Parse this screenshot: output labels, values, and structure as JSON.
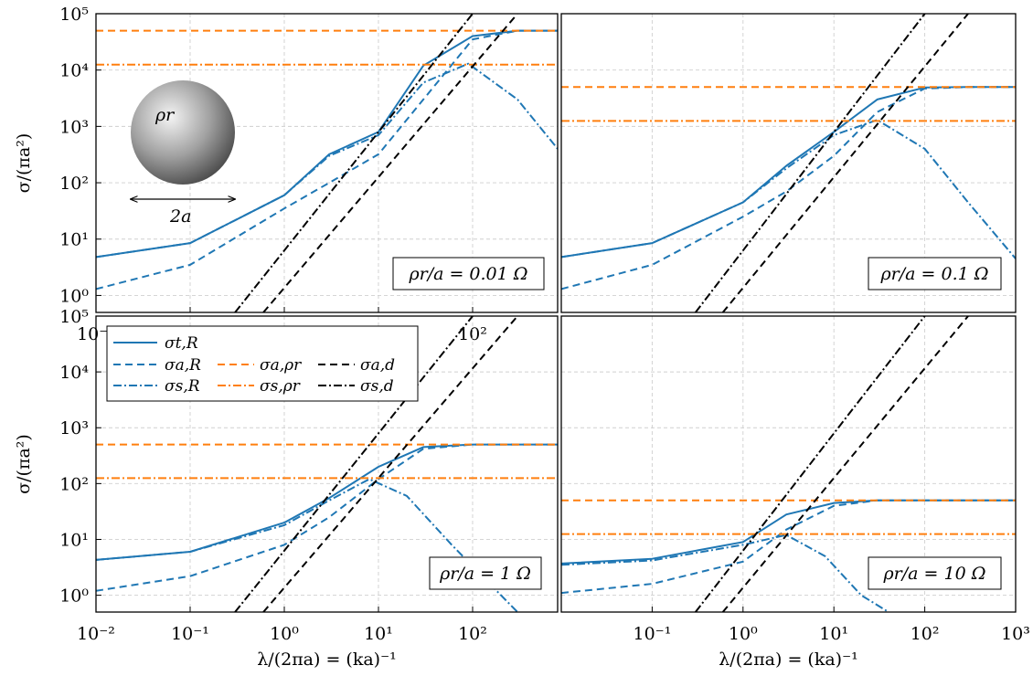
{
  "colors": {
    "blue": "#1f77b4",
    "orange": "#ff7f0e",
    "black": "#000000",
    "grid": "#cfcfcf"
  },
  "chart_data": [
    {
      "type": "line",
      "panel": "top-left",
      "annotation": "ρr/a = 0.01 Ω",
      "ylabel": "σ/(πa²)",
      "xlabel": "",
      "x_scale": "log",
      "y_scale": "log",
      "xlim": [
        0.01,
        800
      ],
      "ylim": [
        0.5,
        100000
      ],
      "xticks": [
        "10⁻²",
        "10⁻¹",
        "10⁰",
        "10¹",
        "10²"
      ],
      "yticks": [
        "10⁰",
        "10¹",
        "10²",
        "10³",
        "10⁴",
        "10⁵"
      ],
      "inset": {
        "sphere_label": "ρr",
        "dimension_label": "2a"
      },
      "series": [
        {
          "name": "σt,R",
          "style": "solid",
          "color": "blue",
          "x": [
            0.01,
            0.1,
            1,
            3,
            10,
            30,
            100,
            300,
            800
          ],
          "y": [
            4.8,
            8.5,
            60,
            320,
            800,
            12000,
            40000,
            50000,
            50000
          ]
        },
        {
          "name": "σa,R",
          "style": "dashed",
          "color": "blue",
          "x": [
            0.01,
            0.1,
            1,
            3,
            10,
            30,
            100,
            300,
            800
          ],
          "y": [
            1.3,
            3.5,
            35,
            100,
            320,
            3000,
            35000,
            50000,
            50000
          ]
        },
        {
          "name": "σs,R",
          "style": "dashdot",
          "color": "blue",
          "x": [
            0.01,
            0.1,
            1,
            3,
            10,
            30,
            90,
            300,
            800
          ],
          "y": [
            4.8,
            8.5,
            60,
            300,
            700,
            6000,
            13000,
            3000,
            400
          ]
        },
        {
          "name": "σa,ρr",
          "style": "dashed",
          "color": "orange",
          "x": [
            0.01,
            800
          ],
          "y": [
            50000,
            50000
          ]
        },
        {
          "name": "σs,ρr",
          "style": "dashdot",
          "color": "orange",
          "x": [
            0.01,
            800
          ],
          "y": [
            12500,
            12500
          ]
        },
        {
          "name": "σa,d",
          "style": "dashed",
          "color": "black",
          "x": [
            0.6,
            300
          ],
          "y": [
            0.5,
            100000
          ]
        },
        {
          "name": "σs,d",
          "style": "dashdot",
          "color": "black",
          "x": [
            0.3,
            100
          ],
          "y": [
            0.5,
            100000
          ]
        }
      ]
    },
    {
      "type": "line",
      "panel": "top-right",
      "annotation": "ρr/a = 0.1 Ω",
      "ylabel": "",
      "xlabel": "",
      "x_scale": "log",
      "y_scale": "log",
      "xlim": [
        0.01,
        1000
      ],
      "ylim": [
        0.5,
        100000
      ],
      "xticks": [],
      "yticks": [],
      "series": [
        {
          "name": "σt,R",
          "style": "solid",
          "color": "blue",
          "x": [
            0.01,
            0.1,
            1,
            3,
            10,
            30,
            100,
            300,
            1000
          ],
          "y": [
            4.8,
            8.5,
            45,
            200,
            800,
            3000,
            4900,
            5000,
            5000
          ]
        },
        {
          "name": "σa,R",
          "style": "dashed",
          "color": "blue",
          "x": [
            0.01,
            0.1,
            1,
            3,
            10,
            30,
            100,
            300,
            1000
          ],
          "y": [
            1.3,
            3.5,
            25,
            70,
            300,
            1800,
            4700,
            5000,
            5000
          ]
        },
        {
          "name": "σs,R",
          "style": "dashdot",
          "color": "blue",
          "x": [
            0.01,
            0.1,
            1,
            3,
            10,
            30,
            100,
            300,
            1000
          ],
          "y": [
            4.8,
            8.5,
            45,
            180,
            700,
            1300,
            400,
            45,
            4.5
          ]
        },
        {
          "name": "σa,ρr",
          "style": "dashed",
          "color": "orange",
          "x": [
            0.01,
            1000
          ],
          "y": [
            5000,
            5000
          ]
        },
        {
          "name": "σs,ρr",
          "style": "dashdot",
          "color": "orange",
          "x": [
            0.01,
            1000
          ],
          "y": [
            1250,
            1250
          ]
        },
        {
          "name": "σa,d",
          "style": "dashed",
          "color": "black",
          "x": [
            0.6,
            300
          ],
          "y": [
            0.5,
            100000
          ]
        },
        {
          "name": "σs,d",
          "style": "dashdot",
          "color": "black",
          "x": [
            0.3,
            100
          ],
          "y": [
            0.5,
            100000
          ]
        }
      ]
    },
    {
      "type": "line",
      "panel": "bottom-left",
      "annotation": "ρr/a = 1 Ω",
      "ylabel": "σ/(πa²)",
      "xlabel": "λ/(2πa) = (ka)⁻¹",
      "x_scale": "log",
      "y_scale": "log",
      "xlim": [
        0.01,
        800
      ],
      "ylim": [
        0.5,
        100000
      ],
      "xticks": [
        "10⁻²",
        "10⁻¹",
        "10⁰",
        "10¹",
        "10²"
      ],
      "yticks": [
        "10⁰",
        "10¹",
        "10²",
        "10³",
        "10⁴",
        "10⁵"
      ],
      "legend": {
        "placement": "top-left",
        "entries": [
          "σt,R",
          "σa,R",
          "σs,R",
          "σa,ρr",
          "σs,ρr",
          "σa,d",
          "σs,d"
        ]
      },
      "series": [
        {
          "name": "σt,R",
          "style": "solid",
          "color": "blue",
          "x": [
            0.01,
            0.1,
            1,
            3,
            10,
            30,
            100,
            300,
            800
          ],
          "y": [
            4.3,
            6,
            20,
            55,
            200,
            450,
            500,
            500,
            500
          ]
        },
        {
          "name": "σa,R",
          "style": "dashed",
          "color": "blue",
          "x": [
            0.01,
            0.1,
            1,
            3,
            10,
            30,
            100,
            300,
            800
          ],
          "y": [
            1.2,
            2.2,
            8,
            25,
            120,
            420,
            500,
            500,
            500
          ]
        },
        {
          "name": "σs,R",
          "style": "dashdot",
          "color": "blue",
          "x": [
            0.01,
            0.1,
            1,
            3,
            8,
            20,
            60,
            200,
            300
          ],
          "y": [
            4.3,
            6,
            18,
            50,
            120,
            60,
            8,
            1,
            0.5
          ]
        },
        {
          "name": "σa,ρr",
          "style": "dashed",
          "color": "orange",
          "x": [
            0.01,
            800
          ],
          "y": [
            500,
            500
          ]
        },
        {
          "name": "σs,ρr",
          "style": "dashdot",
          "color": "orange",
          "x": [
            0.01,
            800
          ],
          "y": [
            125,
            125
          ]
        },
        {
          "name": "σa,d",
          "style": "dashed",
          "color": "black",
          "x": [
            0.6,
            300
          ],
          "y": [
            0.5,
            100000
          ]
        },
        {
          "name": "σs,d",
          "style": "dashdot",
          "color": "black",
          "x": [
            0.3,
            100
          ],
          "y": [
            0.5,
            100000
          ]
        }
      ]
    },
    {
      "type": "line",
      "panel": "bottom-right",
      "annotation": "ρr/a = 10 Ω",
      "ylabel": "",
      "xlabel": "λ/(2πa) = (ka)⁻¹",
      "x_scale": "log",
      "y_scale": "log",
      "xlim": [
        0.01,
        1000
      ],
      "ylim": [
        0.5,
        100000
      ],
      "xticks": [
        "10⁻¹",
        "10⁰",
        "10¹",
        "10²",
        "10³"
      ],
      "yticks": [],
      "series": [
        {
          "name": "σt,R",
          "style": "solid",
          "color": "blue",
          "x": [
            0.01,
            0.1,
            1,
            3,
            10,
            30,
            100,
            300,
            1000
          ],
          "y": [
            3.7,
            4.5,
            9,
            28,
            45,
            50,
            50,
            50,
            50
          ]
        },
        {
          "name": "σa,R",
          "style": "dashed",
          "color": "blue",
          "x": [
            0.01,
            0.1,
            1,
            3,
            10,
            30,
            100,
            300,
            1000
          ],
          "y": [
            1.1,
            1.6,
            4,
            15,
            40,
            50,
            50,
            50,
            50
          ]
        },
        {
          "name": "σs,R",
          "style": "dashdot",
          "color": "blue",
          "x": [
            0.01,
            0.1,
            1,
            3,
            8,
            20,
            40
          ],
          "y": [
            3.5,
            4.2,
            8,
            12,
            5,
            1,
            0.5
          ]
        },
        {
          "name": "σa,ρr",
          "style": "dashed",
          "color": "orange",
          "x": [
            0.01,
            1000
          ],
          "y": [
            50,
            50
          ]
        },
        {
          "name": "σs,ρr",
          "style": "dashdot",
          "color": "orange",
          "x": [
            0.01,
            1000
          ],
          "y": [
            12.5,
            12.5
          ]
        },
        {
          "name": "σa,d",
          "style": "dashed",
          "color": "black",
          "x": [
            0.6,
            300
          ],
          "y": [
            0.5,
            100000
          ]
        },
        {
          "name": "σs,d",
          "style": "dashdot",
          "color": "black",
          "x": [
            0.3,
            100
          ],
          "y": [
            0.5,
            100000
          ]
        }
      ]
    }
  ]
}
